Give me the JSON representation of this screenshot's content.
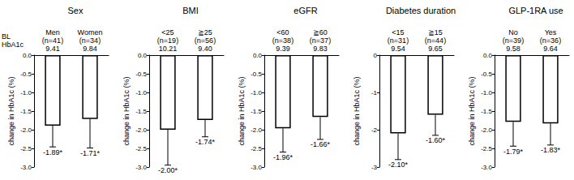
{
  "row_labels": [
    "BL",
    "HbA1c"
  ],
  "chart_data": [
    {
      "type": "bar",
      "title": "Sex",
      "categories": [
        "Men",
        "Women"
      ],
      "n_labels": [
        "(n=41)",
        "(n=34)"
      ],
      "bl_hba1c": [
        "9.41",
        "9.84"
      ],
      "values": [
        -1.89,
        -1.71
      ],
      "value_labels": [
        "-1.89*",
        "-1.71*"
      ],
      "errors": [
        0.57,
        0.78
      ],
      "ylabel": "change in HbA1c (%)",
      "ylim": [
        -3,
        0
      ],
      "yticks": [
        {
          "value": 0,
          "label": "0.0"
        },
        -0.5,
        {
          "value": -1,
          "label": "-1.0"
        },
        -1.5,
        {
          "value": -2,
          "label": "-2.0"
        },
        -2.5,
        {
          "value": -3,
          "label": "-3.0"
        }
      ],
      "color": "#ffffff",
      "grid": false,
      "data_labels": true
    },
    {
      "type": "bar",
      "title": "BMI",
      "categories": [
        "<25",
        "≧25"
      ],
      "n_labels": [
        "(n=19)",
        "(n=56)"
      ],
      "bl_hba1c": [
        "10.21",
        "9.40"
      ],
      "values": [
        -2.0,
        -1.74
      ],
      "value_labels": [
        "-2.00*",
        "-1.74*"
      ],
      "errors": [
        0.95,
        0.45
      ],
      "ylabel": "change in HbA1c (%)",
      "ylim": [
        -3,
        0
      ],
      "yticks": [
        {
          "value": 0,
          "label": "0.0"
        },
        -0.5,
        {
          "value": -1,
          "label": "-1.0"
        },
        -1.5,
        {
          "value": -2,
          "label": "-2.0"
        },
        -2.5,
        {
          "value": -3,
          "label": "-3.0"
        }
      ],
      "color": "#ffffff",
      "grid": false,
      "data_labels": true
    },
    {
      "type": "bar",
      "title": "eGFR",
      "categories": [
        "<60",
        "≧60"
      ],
      "n_labels": [
        "(n=38)",
        "(n=37)"
      ],
      "bl_hba1c": [
        "9.39",
        "9.83"
      ],
      "values": [
        -1.96,
        -1.66
      ],
      "value_labels": [
        "-1.96*",
        "-1.66*"
      ],
      "errors": [
        0.64,
        0.6
      ],
      "ylabel": "change in HbA1c (%)",
      "ylim": [
        -3,
        0
      ],
      "yticks": [
        {
          "value": 0,
          "label": "0.0"
        },
        -0.5,
        {
          "value": -1,
          "label": "-1.0"
        },
        -1.5,
        {
          "value": -2,
          "label": "-2.0"
        },
        -2.5,
        {
          "value": -3,
          "label": "-3.0"
        }
      ],
      "color": "#ffffff",
      "grid": false,
      "data_labels": true
    },
    {
      "type": "bar",
      "title": "Diabetes duration",
      "categories": [
        "<15",
        "≧15"
      ],
      "n_labels": [
        "(n=31)",
        "(n=44)"
      ],
      "bl_hba1c": [
        "9.54",
        "9.65"
      ],
      "values": [
        -2.1,
        -1.6
      ],
      "value_labels": [
        "-2.10*",
        "-1.60*"
      ],
      "errors": [
        0.7,
        0.55
      ],
      "ylabel": "change in HbA1c (%)",
      "ylim": [
        -3,
        0
      ],
      "yticks": [
        0,
        -1,
        -2,
        -3
      ],
      "color": "#ffffff",
      "grid": false,
      "data_labels": true
    },
    {
      "type": "bar",
      "title": "GLP-1RA use",
      "categories": [
        "No",
        "Yes"
      ],
      "n_labels": [
        "(n=39)",
        "(n=36)"
      ],
      "bl_hba1c": [
        "9.58",
        "9.64"
      ],
      "values": [
        -1.79,
        -1.83
      ],
      "value_labels": [
        "-1.79*",
        "-1.83*"
      ],
      "errors": [
        0.65,
        0.58
      ],
      "ylabel": "change in HbA1c (%)",
      "ylim": [
        -3,
        0
      ],
      "yticks": [
        {
          "value": 0,
          "label": "0.0"
        },
        -0.5,
        {
          "value": -1,
          "label": "-1.0"
        },
        -1.5,
        {
          "value": -2,
          "label": "-2.0"
        },
        -2.5,
        {
          "value": -3,
          "label": "-3.0"
        }
      ],
      "color": "#ffffff",
      "grid": false,
      "data_labels": true
    }
  ]
}
